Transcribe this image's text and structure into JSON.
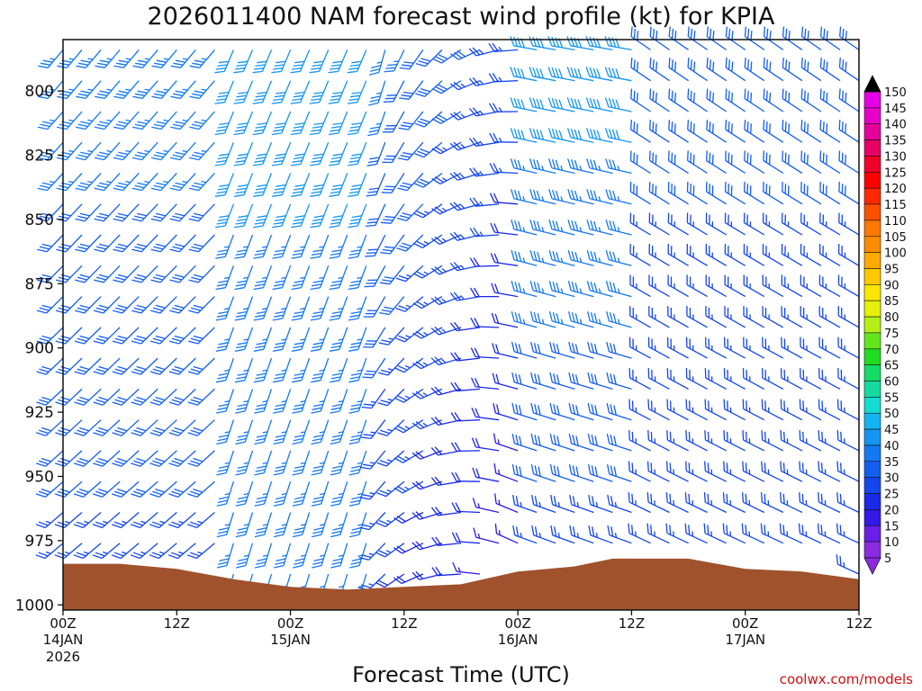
{
  "chart_data": {
    "type": "wind-barb-profile",
    "title": "2026011400 NAM forecast wind profile (kt) for KPIA",
    "xlabel": "Forecast Time (UTC)",
    "ylabel": "",
    "credit": "coolwx.com/models",
    "y_axis": {
      "unit": "hPa",
      "range": [
        780,
        1002
      ],
      "ticks": [
        800,
        825,
        850,
        875,
        900,
        925,
        950,
        975,
        1000
      ],
      "tick_labels": [
        "800",
        "825",
        "850",
        "875",
        "900",
        "925",
        "950",
        "975",
        "1000"
      ]
    },
    "x_axis": {
      "unit": "forecast hour",
      "range": [
        0,
        84
      ],
      "ticks": [
        {
          "hour": 0,
          "label": "00Z",
          "date": "14JAN",
          "year": "2026"
        },
        {
          "hour": 12,
          "label": "12Z",
          "date": "",
          "year": ""
        },
        {
          "hour": 24,
          "label": "00Z",
          "date": "15JAN",
          "year": ""
        },
        {
          "hour": 36,
          "label": "12Z",
          "date": "",
          "year": ""
        },
        {
          "hour": 48,
          "label": "00Z",
          "date": "16JAN",
          "year": ""
        },
        {
          "hour": 60,
          "label": "12Z",
          "date": "",
          "year": ""
        },
        {
          "hour": 72,
          "label": "00Z",
          "date": "17JAN",
          "year": ""
        },
        {
          "hour": 84,
          "label": "12Z",
          "date": "",
          "year": ""
        }
      ]
    },
    "levels_hpa": [
      784,
      796,
      808,
      820,
      832,
      844,
      856,
      868,
      880,
      892,
      904,
      916,
      928,
      940,
      952,
      964,
      976,
      988
    ],
    "forecast_hours": [
      0,
      2,
      4,
      6,
      8,
      10,
      12,
      14,
      16,
      18,
      20,
      22,
      24,
      26,
      28,
      30,
      32,
      34,
      36,
      38,
      40,
      42,
      44,
      46,
      48,
      50,
      52,
      54,
      56,
      58,
      60,
      62,
      64,
      66,
      68,
      70,
      72,
      74,
      76,
      78,
      80,
      82,
      84
    ],
    "surface_pressure_hpa": [
      {
        "hour": 0,
        "p": 984
      },
      {
        "hour": 6,
        "p": 984
      },
      {
        "hour": 12,
        "p": 986
      },
      {
        "hour": 18,
        "p": 990
      },
      {
        "hour": 24,
        "p": 993
      },
      {
        "hour": 30,
        "p": 994
      },
      {
        "hour": 36,
        "p": 993
      },
      {
        "hour": 42,
        "p": 992
      },
      {
        "hour": 48,
        "p": 987
      },
      {
        "hour": 54,
        "p": 985
      },
      {
        "hour": 58,
        "p": 982
      },
      {
        "hour": 66,
        "p": 982
      },
      {
        "hour": 72,
        "p": 986
      },
      {
        "hour": 78,
        "p": 987
      },
      {
        "hour": 84,
        "p": 990
      }
    ],
    "wind_regimes": [
      {
        "hours": [
          0,
          18
        ],
        "direction_deg": 225,
        "speed_kt": "25-40"
      },
      {
        "hours": [
          18,
          34
        ],
        "direction_deg": 200,
        "speed_kt": "25-45"
      },
      {
        "hours": [
          34,
          50
        ],
        "direction_deg": 280,
        "speed_kt": "10-30"
      },
      {
        "hours": [
          50,
          62
        ],
        "direction_deg": 290,
        "speed_kt": "25-45"
      },
      {
        "hours": [
          62,
          84
        ],
        "direction_deg": 300,
        "speed_kt": "20-35"
      }
    ],
    "colorbar": {
      "labels": [
        "5",
        "10",
        "15",
        "20",
        "25",
        "30",
        "35",
        "40",
        "45",
        "50",
        "55",
        "60",
        "65",
        "70",
        "75",
        "80",
        "85",
        "90",
        "95",
        "100",
        "105",
        "110",
        "115",
        "120",
        "125",
        "130",
        "135",
        "140",
        "145",
        "150"
      ],
      "colors": [
        "#8a2be2",
        "#6a1ee8",
        "#3418e6",
        "#1a28e8",
        "#1446ee",
        "#145ef2",
        "#1478f2",
        "#1495f2",
        "#14b4f2",
        "#14dcd2",
        "#14dca0",
        "#14dc64",
        "#20dc20",
        "#64e61e",
        "#b4f014",
        "#e6f00a",
        "#ffe600",
        "#ffc800",
        "#ffaa00",
        "#ff8c00",
        "#ff7800",
        "#ff5000",
        "#ff2800",
        "#ff0000",
        "#f00028",
        "#e60064",
        "#e6009a",
        "#e600c8",
        "#e600e6",
        "#000000"
      ]
    },
    "terrain_color": "#a0522d"
  }
}
